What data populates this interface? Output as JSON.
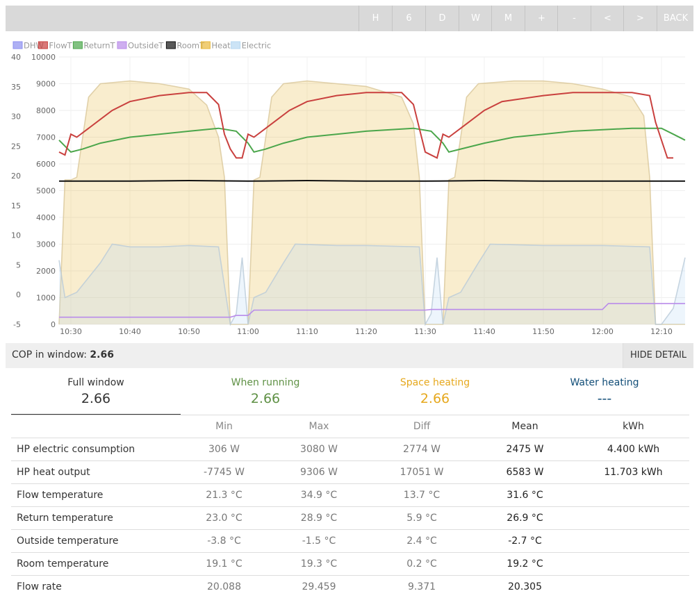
{
  "toolbar": {
    "buttons": [
      "H",
      "6",
      "D",
      "W",
      "M",
      "+",
      "-",
      "<",
      ">",
      "BACK"
    ]
  },
  "colors": {
    "toolbar_bg": "#d9d9d9",
    "DHW": "#8c8ff0",
    "FlowT": "#c9403e",
    "ReturnT": "#4ba64b",
    "OutsideT": "#b98bea",
    "RoomT": "#111111",
    "Heat": "#e9b93c",
    "Electric": "#b7d9f2",
    "when_running": "#5f9145",
    "space_heating": "#e6a81d",
    "water_heating": "#124e78"
  },
  "chart_data": {
    "type": "line",
    "legend": [
      "DHW",
      "FlowT",
      "ReturnT",
      "OutsideT",
      "RoomT",
      "Heat",
      "Electric"
    ],
    "legend_position": "top-left",
    "x_ticks": [
      "10:30",
      "10:40",
      "10:50",
      "11:00",
      "11:10",
      "11:20",
      "11:30",
      "11:40",
      "11:50",
      "12:00",
      "12:10"
    ],
    "x_range": [
      "10:28",
      "12:14"
    ],
    "y_left": {
      "range": [
        -5,
        40
      ],
      "ticks": [
        40,
        35,
        30,
        25,
        20,
        15,
        10,
        5,
        0,
        -5
      ]
    },
    "y_right": {
      "range": [
        0,
        10000
      ],
      "ticks": [
        10000,
        9000,
        8000,
        7000,
        6000,
        5000,
        4000,
        3000,
        2000,
        1000,
        0
      ]
    },
    "grid": true,
    "series": [
      {
        "name": "FlowT",
        "axis": "left",
        "points": [
          [
            "10:28",
            24
          ],
          [
            "10:29",
            23.5
          ],
          [
            "10:30",
            27
          ],
          [
            "10:31",
            26.5
          ],
          [
            "10:33",
            28
          ],
          [
            "10:35",
            29.5
          ],
          [
            "10:37",
            31
          ],
          [
            "10:40",
            32.5
          ],
          [
            "10:45",
            33.5
          ],
          [
            "10:50",
            34
          ],
          [
            "10:53",
            34
          ],
          [
            "10:55",
            32
          ],
          [
            "10:56",
            27
          ],
          [
            "10:57",
            24.5
          ],
          [
            "10:58",
            23
          ],
          [
            "10:59",
            23
          ],
          [
            "11:00",
            27
          ],
          [
            "11:01",
            26.5
          ],
          [
            "11:03",
            28
          ],
          [
            "11:05",
            29.5
          ],
          [
            "11:07",
            31
          ],
          [
            "11:10",
            32.5
          ],
          [
            "11:15",
            33.5
          ],
          [
            "11:20",
            34
          ],
          [
            "11:26",
            34
          ],
          [
            "11:28",
            32
          ],
          [
            "11:29",
            28
          ],
          [
            "11:30",
            24
          ],
          [
            "11:31",
            23.5
          ],
          [
            "11:32",
            23
          ],
          [
            "11:33",
            27
          ],
          [
            "11:34",
            26.5
          ],
          [
            "11:36",
            28
          ],
          [
            "11:38",
            29.5
          ],
          [
            "11:40",
            31
          ],
          [
            "11:43",
            32.5
          ],
          [
            "11:50",
            33.5
          ],
          [
            "11:55",
            34
          ],
          [
            "12:05",
            34
          ],
          [
            "12:08",
            33.5
          ],
          [
            "12:09",
            29
          ],
          [
            "12:10",
            26
          ],
          [
            "12:11",
            23
          ],
          [
            "12:12",
            23
          ]
        ]
      },
      {
        "name": "ReturnT",
        "axis": "left",
        "points": [
          [
            "10:28",
            26
          ],
          [
            "10:30",
            24
          ],
          [
            "10:32",
            24.5
          ],
          [
            "10:35",
            25.5
          ],
          [
            "10:40",
            26.5
          ],
          [
            "10:45",
            27
          ],
          [
            "10:50",
            27.5
          ],
          [
            "10:55",
            28
          ],
          [
            "10:58",
            27.5
          ],
          [
            "11:00",
            25.5
          ],
          [
            "11:01",
            24
          ],
          [
            "11:03",
            24.5
          ],
          [
            "11:06",
            25.5
          ],
          [
            "11:10",
            26.5
          ],
          [
            "11:15",
            27
          ],
          [
            "11:20",
            27.5
          ],
          [
            "11:28",
            28
          ],
          [
            "11:31",
            27.5
          ],
          [
            "11:33",
            25.5
          ],
          [
            "11:34",
            24
          ],
          [
            "11:36",
            24.5
          ],
          [
            "11:40",
            25.5
          ],
          [
            "11:45",
            26.5
          ],
          [
            "11:50",
            27
          ],
          [
            "11:55",
            27.5
          ],
          [
            "12:05",
            28
          ],
          [
            "12:10",
            28
          ],
          [
            "12:12",
            27
          ],
          [
            "12:14",
            26
          ]
        ]
      },
      {
        "name": "RoomT",
        "axis": "left",
        "points": [
          [
            "10:28",
            19.1
          ],
          [
            "10:40",
            19.1
          ],
          [
            "10:50",
            19.2
          ],
          [
            "11:00",
            19.1
          ],
          [
            "11:10",
            19.2
          ],
          [
            "11:20",
            19.1
          ],
          [
            "11:30",
            19.1
          ],
          [
            "11:40",
            19.2
          ],
          [
            "11:50",
            19.1
          ],
          [
            "12:00",
            19.1
          ],
          [
            "12:14",
            19.1
          ]
        ]
      },
      {
        "name": "OutsideT",
        "axis": "left",
        "points": [
          [
            "10:28",
            -3.8
          ],
          [
            "10:57",
            -3.8
          ],
          [
            "10:58",
            -3.5
          ],
          [
            "11:00",
            -3.5
          ],
          [
            "11:01",
            -2.6
          ],
          [
            "11:30",
            -2.6
          ],
          [
            "11:31",
            -2.5
          ],
          [
            "12:00",
            -2.5
          ],
          [
            "12:01",
            -1.5
          ],
          [
            "12:14",
            -1.5
          ]
        ]
      },
      {
        "name": "Heat",
        "axis": "right",
        "points": [
          [
            "10:28",
            0
          ],
          [
            "10:29",
            5400
          ],
          [
            "10:30",
            5400
          ],
          [
            "10:31",
            5500
          ],
          [
            "10:32",
            7000
          ],
          [
            "10:33",
            8500
          ],
          [
            "10:35",
            9000
          ],
          [
            "10:40",
            9100
          ],
          [
            "10:45",
            9000
          ],
          [
            "10:50",
            8800
          ],
          [
            "10:53",
            8200
          ],
          [
            "10:55",
            7000
          ],
          [
            "10:56",
            5500
          ],
          [
            "10:57",
            0
          ],
          [
            "11:00",
            0
          ],
          [
            "11:01",
            5400
          ],
          [
            "11:02",
            5500
          ],
          [
            "11:03",
            7000
          ],
          [
            "11:04",
            8500
          ],
          [
            "11:06",
            9000
          ],
          [
            "11:10",
            9100
          ],
          [
            "11:15",
            9000
          ],
          [
            "11:20",
            8900
          ],
          [
            "11:26",
            8500
          ],
          [
            "11:28",
            7500
          ],
          [
            "11:29",
            5500
          ],
          [
            "11:30",
            0
          ],
          [
            "11:33",
            0
          ],
          [
            "11:34",
            5400
          ],
          [
            "11:35",
            5500
          ],
          [
            "11:36",
            7000
          ],
          [
            "11:37",
            8500
          ],
          [
            "11:39",
            9000
          ],
          [
            "11:45",
            9100
          ],
          [
            "11:50",
            9100
          ],
          [
            "11:55",
            9000
          ],
          [
            "12:00",
            8800
          ],
          [
            "12:05",
            8500
          ],
          [
            "12:07",
            7800
          ],
          [
            "12:08",
            5500
          ],
          [
            "12:09",
            0
          ],
          [
            "12:14",
            0
          ]
        ]
      },
      {
        "name": "Electric",
        "axis": "right",
        "points": [
          [
            "10:28",
            2400
          ],
          [
            "10:29",
            1000
          ],
          [
            "10:31",
            1200
          ],
          [
            "10:35",
            2300
          ],
          [
            "10:37",
            3000
          ],
          [
            "10:40",
            2900
          ],
          [
            "10:45",
            2900
          ],
          [
            "10:50",
            2950
          ],
          [
            "10:55",
            2900
          ],
          [
            "10:57",
            0
          ],
          [
            "10:58",
            400
          ],
          [
            "10:59",
            2500
          ],
          [
            "11:00",
            0
          ],
          [
            "11:01",
            1000
          ],
          [
            "11:03",
            1200
          ],
          [
            "11:06",
            2300
          ],
          [
            "11:08",
            3000
          ],
          [
            "11:15",
            2950
          ],
          [
            "11:20",
            2950
          ],
          [
            "11:29",
            2900
          ],
          [
            "11:30",
            0
          ],
          [
            "11:31",
            400
          ],
          [
            "11:32",
            2500
          ],
          [
            "11:33",
            0
          ],
          [
            "11:34",
            1000
          ],
          [
            "11:36",
            1200
          ],
          [
            "11:39",
            2300
          ],
          [
            "11:41",
            3000
          ],
          [
            "11:50",
            2950
          ],
          [
            "12:00",
            2950
          ],
          [
            "12:08",
            2900
          ],
          [
            "12:09",
            0
          ],
          [
            "12:10",
            0
          ],
          [
            "12:12",
            600
          ],
          [
            "12:14",
            2500
          ]
        ]
      }
    ]
  },
  "cop": {
    "label": "COP in window:",
    "value": "2.66",
    "hide_label": "HIDE DETAIL"
  },
  "tabs": [
    {
      "title": "Full window",
      "value": "2.66"
    },
    {
      "title": "When running",
      "value": "2.66"
    },
    {
      "title": "Space heating",
      "value": "2.66"
    },
    {
      "title": "Water heating",
      "value": "---"
    }
  ],
  "table": {
    "headers": [
      "",
      "Min",
      "Max",
      "Diff",
      "Mean",
      "kWh"
    ],
    "rows": [
      [
        "HP electric consumption",
        "306 W",
        "3080 W",
        "2774 W",
        "2475 W",
        "4.400 kWh"
      ],
      [
        "HP heat output",
        "-7745 W",
        "9306 W",
        "17051 W",
        "6583 W",
        "11.703 kWh"
      ],
      [
        "Flow temperature",
        "21.3 °C",
        "34.9 °C",
        "13.7 °C",
        "31.6 °C",
        ""
      ],
      [
        "Return temperature",
        "23.0 °C",
        "28.9 °C",
        "5.9 °C",
        "26.9 °C",
        ""
      ],
      [
        "Outside temperature",
        "-3.8 °C",
        "-1.5 °C",
        "2.4 °C",
        "-2.7 °C",
        ""
      ],
      [
        "Room temperature",
        "19.1 °C",
        "19.3 °C",
        "0.2 °C",
        "19.2 °C",
        ""
      ],
      [
        "Flow rate",
        "20.088",
        "29.459",
        "9.371",
        "20.305",
        ""
      ]
    ]
  }
}
